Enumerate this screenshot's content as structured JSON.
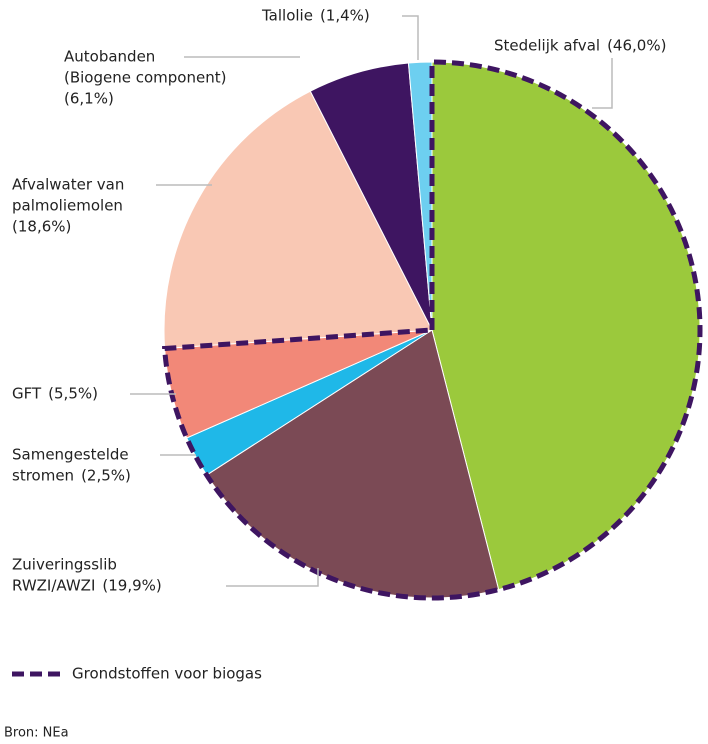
{
  "chart_data": {
    "type": "pie",
    "categories": [
      [
        "Stedelijk afval"
      ],
      [
        "Zuiveringsslib",
        "RWZI/AWZI"
      ],
      [
        "Samengestelde",
        "stromen"
      ],
      [
        "GFT"
      ],
      [
        "Afvalwater van",
        "palmoliemolen"
      ],
      [
        "Autobanden",
        "(Biogene component)"
      ],
      [
        "Tallolie"
      ]
    ],
    "values": [
      46.0,
      19.9,
      2.5,
      5.5,
      18.6,
      6.1,
      1.4
    ],
    "value_labels": [
      "(46,0%)",
      "(19,9%)",
      "(2,5%)",
      "(5,5%)",
      "(18,6%)",
      "(6,1%)",
      "(1,4%)"
    ],
    "colors": [
      "#9bc93c",
      "#7b4a55",
      "#1fb8e8",
      "#f28878",
      "#f9c8b4",
      "#3e1561",
      "#6dcff0"
    ],
    "outline": {
      "name": "Grondstoffen voor biogas",
      "color": "#3e1561",
      "members": [
        true,
        true,
        true,
        true,
        false,
        false,
        false
      ]
    },
    "source": "Bron: NEa"
  }
}
